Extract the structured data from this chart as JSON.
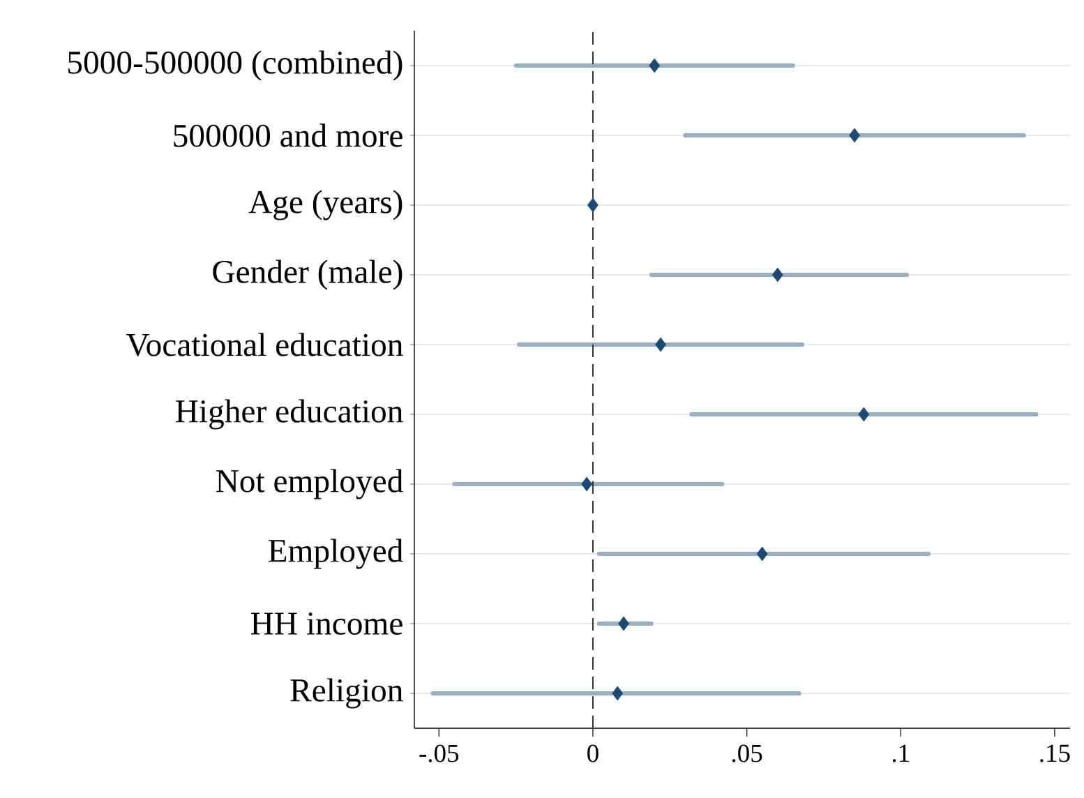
{
  "chart_data": {
    "type": "scatter",
    "orientation": "horizontal",
    "categories": [
      "5000-500000 (combined)",
      "500000 and more",
      "Age (years)",
      "Gender (male)",
      "Vocational education",
      "Higher education",
      "Not employed",
      "Employed",
      "HH income",
      "Religion"
    ],
    "values": [
      0.02,
      0.085,
      0.0,
      0.06,
      0.022,
      0.088,
      -0.002,
      0.055,
      0.01,
      0.008
    ],
    "errors": [
      [
        -0.025,
        0.065
      ],
      [
        0.03,
        0.14
      ],
      null,
      [
        0.019,
        0.102
      ],
      [
        -0.024,
        0.068
      ],
      [
        0.032,
        0.144
      ],
      [
        -0.045,
        0.042
      ],
      [
        0.002,
        0.109
      ],
      [
        0.002,
        0.019
      ],
      [
        -0.052,
        0.067
      ]
    ],
    "color": "#1c4a74",
    "marker": "diamond",
    "xlim": [
      -0.058,
      0.155
    ],
    "xticks": [
      {
        "value": -0.05,
        "label": "-.05"
      },
      0,
      {
        "value": 0.05,
        "label": ".05"
      },
      {
        "value": 0.1,
        "label": ".1"
      },
      {
        "value": 0.15,
        "label": ".15"
      }
    ],
    "grid": "y",
    "ref_lines": [
      {
        "axis": "x",
        "value": 0,
        "color": "#333333",
        "line_style": "dashed"
      }
    ]
  }
}
